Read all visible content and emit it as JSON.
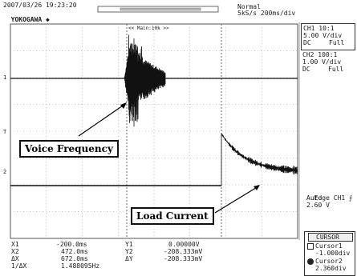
{
  "header": {
    "datetime": "2007/03/26 19:23:20",
    "brand": "YOKOGAWA",
    "trigger_mode": "Normal",
    "sample_rate": "5kS/s 200ms/div",
    "main_label": "<< Main:10k >>"
  },
  "channels": {
    "ch1": {
      "name": "CH1 10:1",
      "scale": "5.00 V/div",
      "coupling": "DC",
      "bandwidth": "Full"
    },
    "ch2": {
      "name": "CH2 100:1",
      "scale": "1.00 V/div",
      "coupling": "DC",
      "bandwidth": "Full"
    }
  },
  "trigger": {
    "type": "Edge CH1",
    "mode": "Auto",
    "level": "2.60 V"
  },
  "measurements": {
    "x1_label": "X1",
    "x1_value": "-200.0ms",
    "x2_label": "X2",
    "x2_value": "472.0ms",
    "dx_label": "ΔX",
    "dx_value": "672.0ms",
    "inv_dx_label": "1/ΔX",
    "inv_dx_value": "1.488095Hz",
    "y1_label": "Y1",
    "y1_value": "0.00000V",
    "y2_label": "Y2",
    "y2_value": "-208.333mV",
    "dy_label": "ΔY",
    "dy_value": "-208.333mV"
  },
  "cursor_panel": {
    "title": "CURSOR",
    "cursor1_label": "Cursor1",
    "cursor1_value": "-1.000div",
    "cursor2_label": "Cursor2",
    "cursor2_value": "2.360div"
  },
  "annotations": {
    "voice": "Voice Frequency",
    "load": "Load Current"
  },
  "icons": {
    "brand_mark": "diamond-icon",
    "trigger_edge": "rising-edge-icon"
  }
}
